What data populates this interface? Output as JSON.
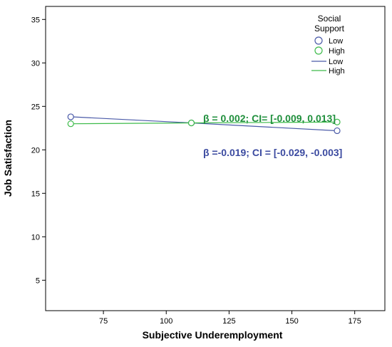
{
  "chart_data": {
    "type": "line",
    "xlabel": "Subjective Underemployment",
    "ylabel": "Job Satisfaction",
    "xlim": [
      52,
      187
    ],
    "ylim": [
      1.5,
      36.5
    ],
    "x_ticks": [
      75,
      100,
      125,
      150,
      175
    ],
    "y_ticks": [
      5,
      10,
      15,
      20,
      25,
      30,
      35
    ],
    "grid": false,
    "legend": {
      "title_lines": [
        "Social",
        "Support"
      ],
      "placement": "top-right",
      "marker_entries": [
        "Low",
        "High"
      ],
      "line_entries": [
        "Low",
        "High"
      ]
    },
    "series": [
      {
        "name": "Low",
        "color": "#4a5aa8",
        "points": [
          {
            "x": 62,
            "y": 23.8
          },
          {
            "x": 110,
            "y": 23.1
          },
          {
            "x": 168,
            "y": 22.2
          }
        ]
      },
      {
        "name": "High",
        "color": "#3dbb4a",
        "points": [
          {
            "x": 62,
            "y": 23.0
          },
          {
            "x": 110,
            "y": 23.1
          },
          {
            "x": 168,
            "y": 23.2
          }
        ]
      }
    ],
    "annotations": [
      {
        "text": "β = 0.002; CI= [-0.009, 0.013]",
        "color": "#1f8f3c"
      },
      {
        "text": "β =-0.019; CI = [-0.029, -0.003]",
        "color": "#3b4aa0"
      }
    ]
  }
}
